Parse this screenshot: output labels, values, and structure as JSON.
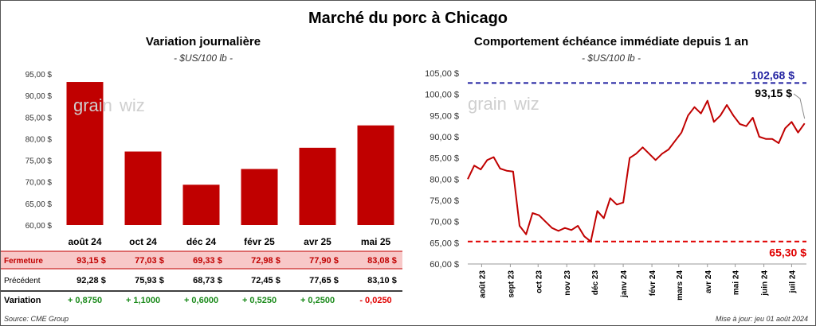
{
  "title": "Marché du porc à Chicago",
  "left_panel": {
    "title": "Variation  journalière",
    "unit": "- $US/100 lb -",
    "rows": [
      {
        "label": "Fermeture",
        "values": [
          "93,15  $",
          "77,03  $",
          "69,33  $",
          "72,98  $",
          "77,90  $",
          "83,08  $"
        ]
      },
      {
        "label": "Précédent",
        "values": [
          "92,28  $",
          "75,93  $",
          "68,73  $",
          "72,45  $",
          "77,65  $",
          "83,10  $"
        ]
      },
      {
        "label": "Variation",
        "values": [
          "+ 0,8750",
          "+ 1,1000",
          "+ 0,6000",
          "+ 0,5250",
          "+ 0,2500",
          "- 0,0250"
        ]
      }
    ]
  },
  "right_panel": {
    "title": "Comportement  échéance immédiate depuis 1 an",
    "unit": "- $US/100 lb -",
    "high_label": "102,68 $",
    "low_label": "65,30 $",
    "last_label": "93,15 $"
  },
  "footer": {
    "source": "Source: CME Group",
    "updated": "Mise à jour: jeu 01 août 2024"
  },
  "colors": {
    "bar": "#c00000",
    "line": "#c00000",
    "high": "#1f1fa0",
    "low": "#e00000",
    "pos": "#1a8a1a",
    "neg": "#e00000"
  },
  "chart_data": [
    {
      "type": "bar",
      "title": "Variation  journalière",
      "categories": [
        "août 24",
        "oct 24",
        "déc 24",
        "févr 25",
        "avr 25",
        "mai 25"
      ],
      "values": [
        93.15,
        77.03,
        69.33,
        72.98,
        77.9,
        83.08
      ],
      "ylim": [
        60,
        95
      ],
      "yticks": [
        "60,00 $",
        "65,00 $",
        "70,00 $",
        "75,00 $",
        "80,00 $",
        "85,00 $",
        "90,00 $",
        "95,00 $"
      ],
      "grid": false
    },
    {
      "type": "line",
      "title": "Comportement  échéance immédiate depuis 1 an",
      "ylim": [
        60,
        105
      ],
      "yticks": [
        "60,00 $",
        "65,00 $",
        "70,00 $",
        "75,00 $",
        "80,00 $",
        "85,00 $",
        "90,00 $",
        "95,00 $",
        "100,00 $",
        "105,00 $"
      ],
      "xticks": [
        "août 23",
        "sept 23",
        "oct 23",
        "nov 23",
        "déc 23",
        "janv 24",
        "févr 24",
        "mars 24",
        "avr 24",
        "mai 24",
        "juin 24",
        "juil 24"
      ],
      "high": 102.68,
      "low": 65.3,
      "last": 93.15,
      "x": [
        "2023-08-01",
        "2023-08-08",
        "2023-08-15",
        "2023-08-22",
        "2023-08-29",
        "2023-09-05",
        "2023-09-12",
        "2023-09-19",
        "2023-09-26",
        "2023-10-03",
        "2023-10-10",
        "2023-10-17",
        "2023-10-24",
        "2023-10-31",
        "2023-11-07",
        "2023-11-14",
        "2023-11-21",
        "2023-11-28",
        "2023-12-05",
        "2023-12-12",
        "2023-12-19",
        "2023-12-26",
        "2024-01-02",
        "2024-01-09",
        "2024-01-16",
        "2024-01-23",
        "2024-01-30",
        "2024-02-06",
        "2024-02-13",
        "2024-02-20",
        "2024-02-27",
        "2024-03-05",
        "2024-03-12",
        "2024-03-19",
        "2024-03-26",
        "2024-04-02",
        "2024-04-09",
        "2024-04-16",
        "2024-04-23",
        "2024-04-30",
        "2024-05-07",
        "2024-05-14",
        "2024-05-21",
        "2024-05-28",
        "2024-06-04",
        "2024-06-11",
        "2024-06-18",
        "2024-06-25",
        "2024-07-02",
        "2024-07-09",
        "2024-07-16",
        "2024-07-23",
        "2024-07-30"
      ],
      "values": [
        80.0,
        83.2,
        82.3,
        84.5,
        85.2,
        82.5,
        82.0,
        81.8,
        69.0,
        67.0,
        72.0,
        71.5,
        70.0,
        68.5,
        67.8,
        68.5,
        68.0,
        69.0,
        66.5,
        65.3,
        72.5,
        70.8,
        75.5,
        74.0,
        74.5,
        85.0,
        86.0,
        87.5,
        86.0,
        84.5,
        86.0,
        87.0,
        89.0,
        91.0,
        95.0,
        97.0,
        95.5,
        98.5,
        93.5,
        95.0,
        97.5,
        95.0,
        93.0,
        92.5,
        94.5,
        90.0,
        89.5,
        89.5,
        88.5,
        92.0,
        93.5,
        91.0,
        93.15
      ]
    }
  ]
}
